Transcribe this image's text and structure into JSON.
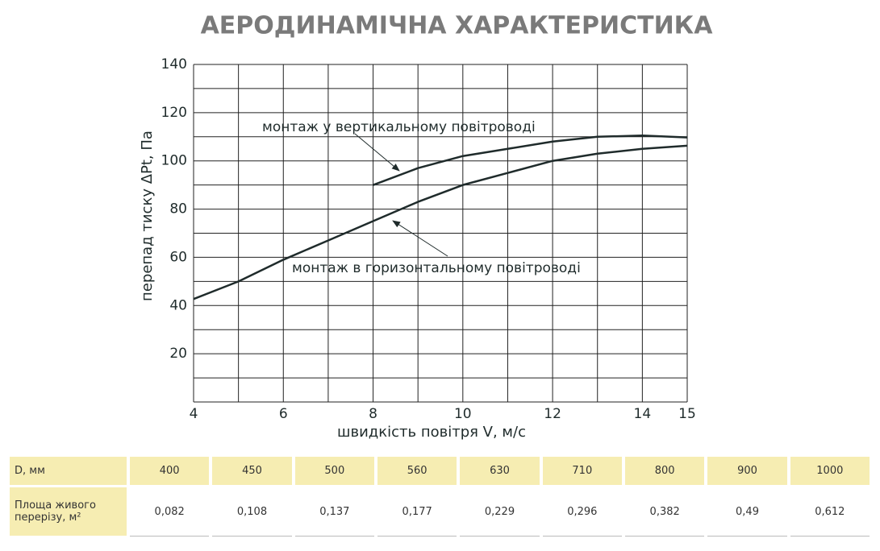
{
  "chart_data": {
    "type": "line",
    "title": "АЕРОДИНАМІЧНА ХАРАКТЕРИСТИКА",
    "xlabel": "швидкість повітря V, м/с",
    "ylabel": "перепад тиску ΔPt, Па",
    "x": [
      4,
      5,
      6,
      7,
      8,
      9,
      10,
      11,
      12,
      13,
      14,
      15
    ],
    "series": [
      {
        "name": "монтаж у вертикальному повітроводі",
        "color": "#1f2b2b",
        "values": [
          null,
          null,
          null,
          null,
          90,
          97,
          102,
          105,
          108,
          110,
          110.5,
          109.7
        ]
      },
      {
        "name": "монтаж в горизонтальному повітроводі",
        "color": "#1f2b2b",
        "values": [
          42.7,
          50,
          59,
          67,
          75,
          83,
          90,
          95,
          100,
          103,
          105,
          106.3
        ]
      }
    ],
    "xlim": [
      4,
      15
    ],
    "ylim": [
      0,
      140
    ],
    "xticks": [
      4,
      6,
      8,
      10,
      12,
      14,
      15
    ],
    "yticks": [
      20,
      40,
      60,
      80,
      100,
      120,
      140
    ],
    "xgrid": [
      4,
      5,
      6,
      7,
      8,
      9,
      10,
      11,
      12,
      13,
      14,
      15
    ],
    "ygrid": [
      0,
      10,
      20,
      30,
      40,
      50,
      60,
      70,
      80,
      90,
      100,
      110,
      120,
      130,
      140
    ],
    "grid": true
  },
  "table": {
    "rows": [
      [
        "D, мм",
        400,
        450,
        500,
        560,
        630,
        710,
        800,
        900,
        1000
      ],
      [
        "Площа живого перерізу, м²",
        "0,082",
        "0,108",
        "0,137",
        "0,177",
        "0,229",
        "0,296",
        "0,382",
        "0,49",
        "0,612"
      ]
    ]
  }
}
